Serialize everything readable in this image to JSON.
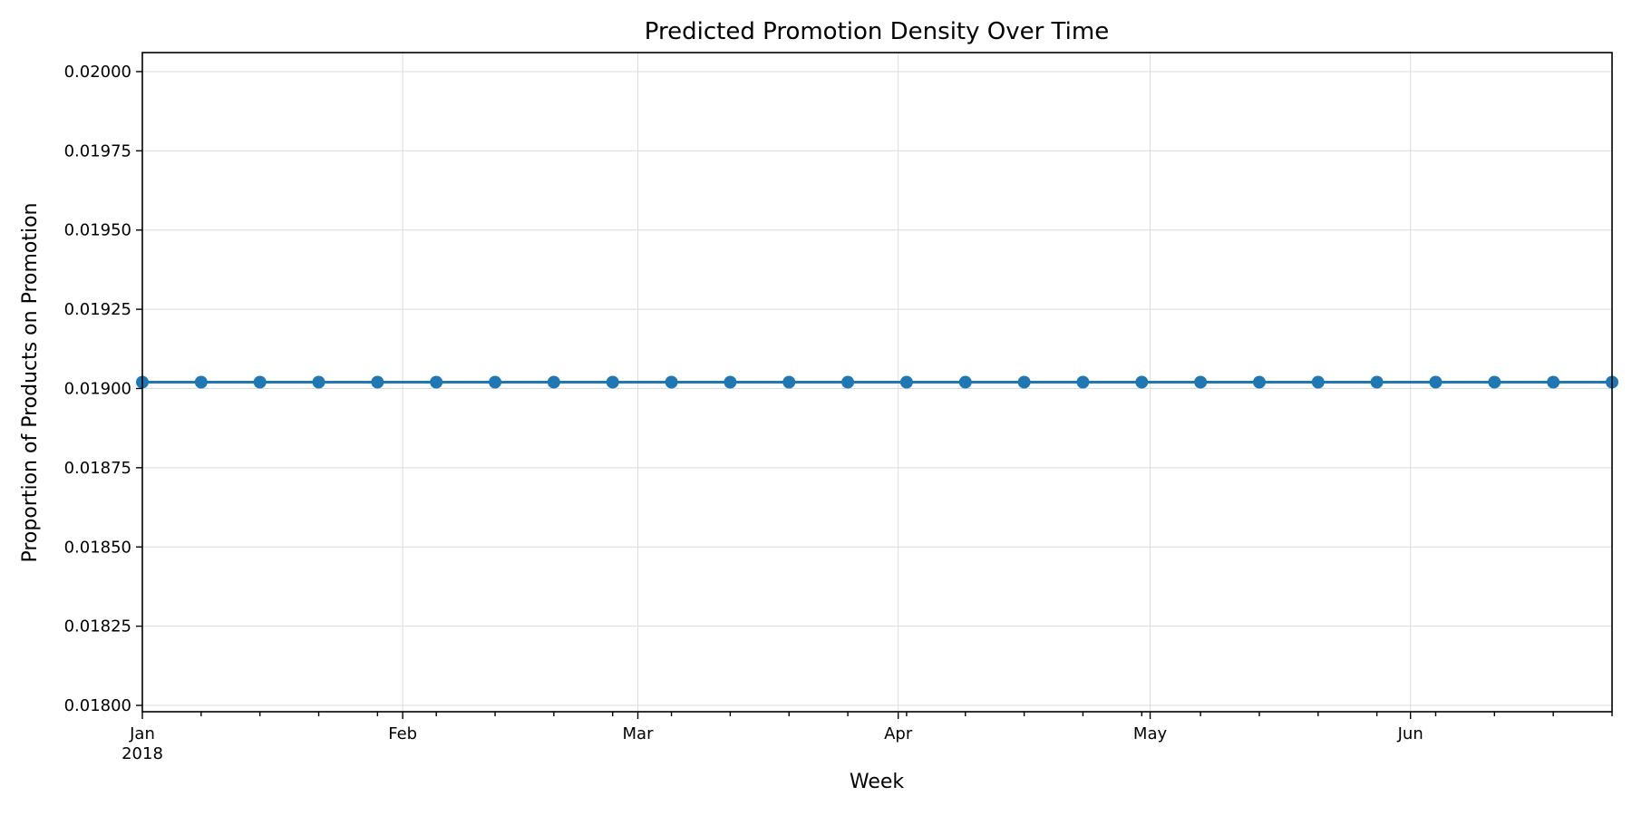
{
  "colors": {
    "series": "#1f77b4",
    "grid": "#dcdcdc",
    "axis": "#000000"
  },
  "chart_data": {
    "type": "line",
    "title": "Predicted Promotion Density Over Time",
    "xlabel": "Week",
    "ylabel": "Proportion of Products on Promotion",
    "grid": true,
    "marker": "circle",
    "xlim": [
      "2018-01-01",
      "2018-06-25"
    ],
    "ylim": [
      0.01798,
      0.02006
    ],
    "y_ticks": [
      "0.01800",
      "0.01825",
      "0.01850",
      "0.01875",
      "0.01900",
      "0.01925",
      "0.01950",
      "0.01975",
      "0.02000"
    ],
    "x_major_ticks": [
      {
        "date": "2018-01-01",
        "label": "Jan",
        "sublabel": "2018"
      },
      {
        "date": "2018-02-01",
        "label": "Feb"
      },
      {
        "date": "2018-03-01",
        "label": "Mar"
      },
      {
        "date": "2018-04-01",
        "label": "Apr"
      },
      {
        "date": "2018-05-01",
        "label": "May"
      },
      {
        "date": "2018-06-01",
        "label": "Jun"
      }
    ],
    "series": [
      {
        "x": [
          "2018-01-01",
          "2018-01-08",
          "2018-01-15",
          "2018-01-22",
          "2018-01-29",
          "2018-02-05",
          "2018-02-12",
          "2018-02-19",
          "2018-02-26",
          "2018-03-05",
          "2018-03-12",
          "2018-03-19",
          "2018-03-26",
          "2018-04-02",
          "2018-04-09",
          "2018-04-16",
          "2018-04-23",
          "2018-04-30",
          "2018-05-07",
          "2018-05-14",
          "2018-05-21",
          "2018-05-28",
          "2018-06-04",
          "2018-06-11",
          "2018-06-18",
          "2018-06-25"
        ],
        "values": [
          0.01902,
          0.01902,
          0.01902,
          0.01902,
          0.01902,
          0.01902,
          0.01902,
          0.01902,
          0.01902,
          0.01902,
          0.01902,
          0.01902,
          0.01902,
          0.01902,
          0.01902,
          0.01902,
          0.01902,
          0.01902,
          0.01902,
          0.01902,
          0.01902,
          0.01902,
          0.01902,
          0.01902,
          0.01902,
          0.01902
        ]
      }
    ]
  }
}
